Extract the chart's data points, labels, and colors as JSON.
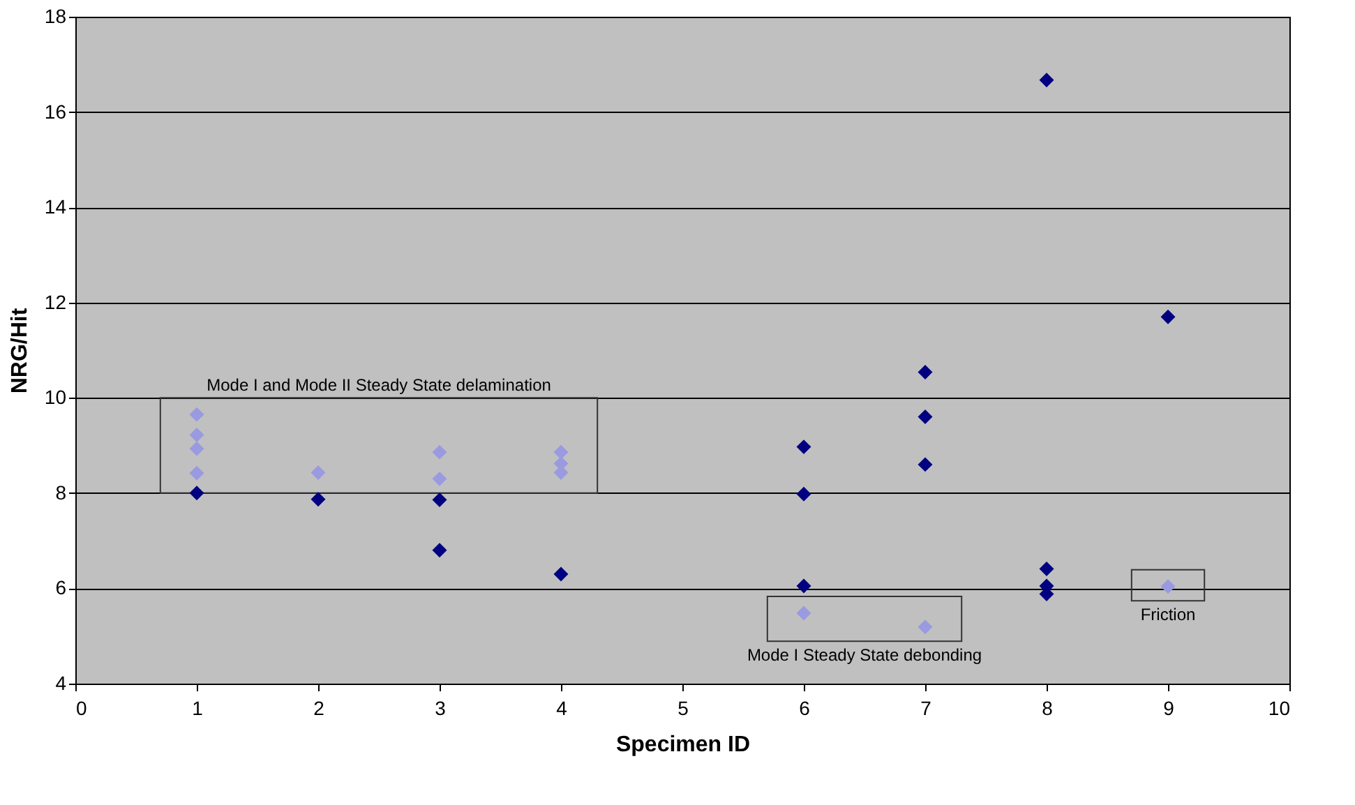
{
  "chart_data": {
    "type": "scatter",
    "xlabel": "Specimen ID",
    "ylabel": "NRG/Hit",
    "xlim": [
      0,
      10
    ],
    "xticks": [
      {
        "value": 0,
        "label": "0"
      },
      {
        "value": 1,
        "label": "1"
      },
      {
        "value": 2,
        "label": "2"
      },
      {
        "value": 3,
        "label": "3"
      },
      {
        "value": 4,
        "label": "4"
      },
      {
        "value": 5,
        "label": "5"
      },
      {
        "value": 6,
        "label": "6"
      },
      {
        "value": 7,
        "label": "7"
      },
      {
        "value": 8,
        "label": "8"
      },
      {
        "value": 9,
        "label": "9"
      },
      {
        "value": 10,
        "label": "10"
      }
    ],
    "ylim": [
      4,
      18
    ],
    "yticks": [
      4,
      6,
      8,
      10,
      12,
      14,
      16,
      18
    ],
    "grid": "y",
    "marker": "diamond",
    "series": [
      {
        "color": "#000080",
        "x": [
          1,
          2,
          3,
          3,
          4,
          6,
          6,
          6,
          7,
          7,
          7,
          8,
          8,
          8,
          8,
          9
        ],
        "values": [
          8.0,
          7.87,
          7.86,
          6.8,
          6.3,
          8.97,
          7.98,
          6.05,
          10.54,
          9.6,
          8.6,
          16.67,
          6.41,
          6.05,
          5.88,
          11.7
        ]
      },
      {
        "color": "#9a9ae0",
        "x": [
          1,
          1,
          1,
          1,
          2,
          3,
          3,
          4,
          4,
          4,
          6,
          7,
          9
        ],
        "values": [
          9.65,
          9.22,
          8.93,
          8.42,
          8.43,
          8.86,
          8.3,
          8.86,
          8.62,
          8.43,
          5.48,
          5.19,
          6.04
        ]
      }
    ],
    "annotations": [
      "Mode I and Mode II Steady State delamination",
      "Mode I Steady State debonding",
      "Friction"
    ]
  }
}
